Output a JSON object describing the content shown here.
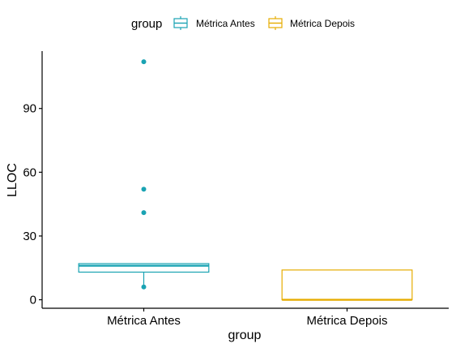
{
  "chart_data": {
    "type": "boxplot",
    "xlabel": "group",
    "ylabel": "LLOC",
    "ylim": [
      -4,
      117
    ],
    "yticks": [
      0,
      30,
      60,
      90
    ],
    "categories": [
      "Métrica Antes",
      "Métrica Depois"
    ],
    "legend": {
      "title": "group",
      "position": "top",
      "entries": [
        "Métrica Antes",
        "Métrica Depois"
      ]
    },
    "grid": false,
    "series": [
      {
        "name": "Métrica Antes",
        "color": "#1aa3b3",
        "lower_whisker": 6,
        "q1": 13,
        "median": 16,
        "q3": 17,
        "upper_whisker": 17,
        "outliers": [
          6,
          41,
          52,
          112
        ]
      },
      {
        "name": "Métrica Depois",
        "color": "#e6ac00",
        "lower_whisker": 0,
        "q1": 0,
        "median": 0,
        "q3": 14,
        "upper_whisker": 14,
        "outliers": []
      }
    ]
  }
}
